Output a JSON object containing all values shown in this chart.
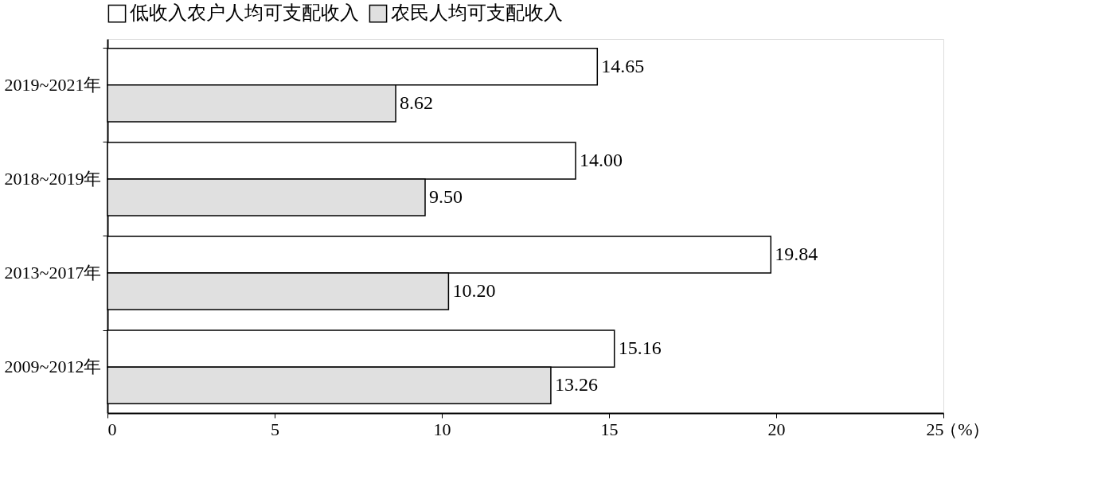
{
  "chart_data": {
    "type": "bar",
    "orientation": "horizontal",
    "xlabel": "（%）",
    "categories": [
      "2019~2021年",
      "2018~2019年",
      "2013~2017年",
      "2009~2012年"
    ],
    "series": [
      {
        "name": "低收入农户人均可支配收入",
        "color": "#ffffff",
        "values": [
          14.65,
          14.0,
          19.84,
          15.16
        ],
        "value_labels": [
          "14.65",
          "14.00",
          "19.84",
          "15.16"
        ]
      },
      {
        "name": "农民人均可支配收入",
        "color": "#e0e0e0",
        "values": [
          8.62,
          9.5,
          10.2,
          13.26
        ],
        "value_labels": [
          "8.62",
          "9.50",
          "10.20",
          "13.26"
        ]
      }
    ],
    "xlim": [
      0,
      25
    ],
    "xticks": [
      0,
      5,
      10,
      15,
      20,
      25
    ],
    "grid": false,
    "legend": "top"
  }
}
